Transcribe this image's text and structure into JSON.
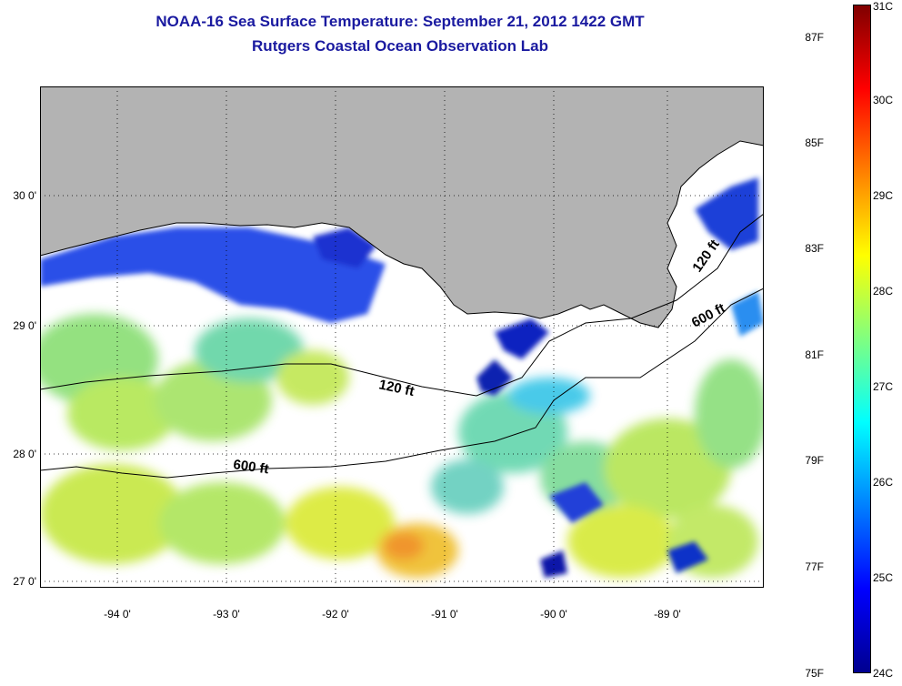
{
  "title": "NOAA-16 Sea Surface Temperature:  September 21, 2012 1422 GMT",
  "subtitle": "Rutgers Coastal Ocean Observation Lab",
  "map": {
    "x_ticks": [
      "-94 0'",
      "-93 0'",
      "-92 0'",
      "-91 0'",
      "-90 0'",
      "-89 0'"
    ],
    "y_ticks": [
      "30 0'",
      "29 0'",
      "28 0'",
      "27 0'"
    ],
    "contour_labels": [
      "120 ft",
      "600 ft",
      "120 ft",
      "600 ft"
    ],
    "colors": {
      "land": "#b3b3b3",
      "no_data": "#ffffff",
      "cold": "#00008f",
      "warm": "#800000"
    }
  },
  "colorbar": {
    "fahrenheit_labels": [
      "87F",
      "85F",
      "83F",
      "81F",
      "79F",
      "77F",
      "75F"
    ],
    "celsius_labels": [
      "31C",
      "30C",
      "29C",
      "28C",
      "27C",
      "26C",
      "25C",
      "24C"
    ],
    "gradient": [
      "#00008f",
      "#0000ff",
      "#0080ff",
      "#00ffff",
      "#80ff80",
      "#ffff00",
      "#ff8000",
      "#ff0000",
      "#800000"
    ]
  }
}
